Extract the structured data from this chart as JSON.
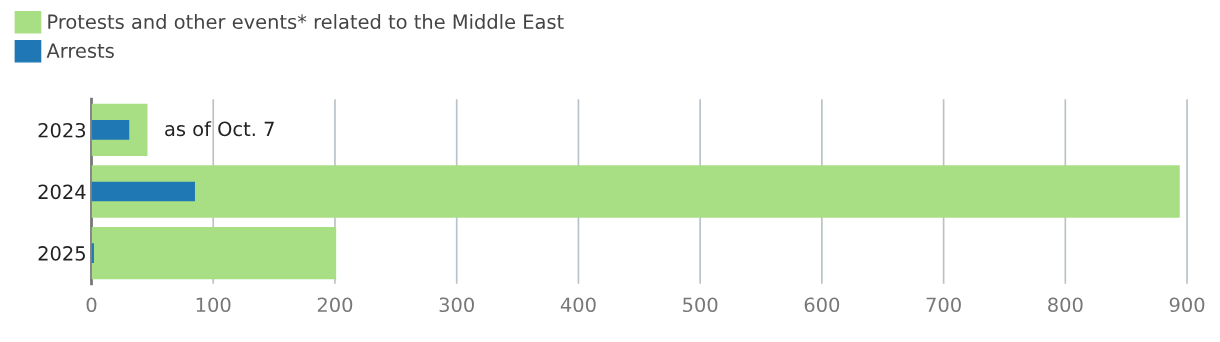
{
  "chart_data": {
    "type": "bar",
    "orientation": "horizontal",
    "categories": [
      "2023",
      "2024",
      "2025"
    ],
    "series": [
      {
        "name": "Protests and other events* related to the Middle East",
        "color": "#a8df84",
        "values": [
          46,
          894,
          201
        ]
      },
      {
        "name": "Arrests",
        "color": "#1f77b4",
        "values": [
          31,
          85,
          2
        ]
      }
    ],
    "xlim": [
      0,
      902
    ],
    "xticks": [
      0,
      100,
      200,
      300,
      400,
      500,
      600,
      700,
      800,
      900
    ],
    "grid": "x",
    "legend": "top left",
    "annotations": [
      "as of Oct. 7"
    ]
  }
}
